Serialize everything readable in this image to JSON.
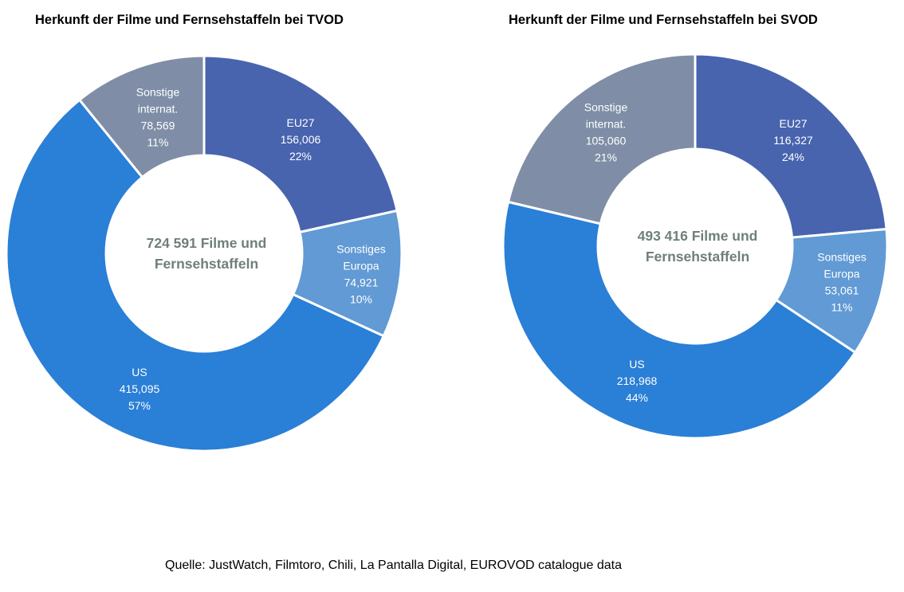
{
  "chart_data": [
    {
      "type": "pie",
      "title": "Herkunft der Filme und Fernsehstaffeln bei TVOD",
      "center_lines": [
        "724 591 Filme und",
        "Fernsehstaffeln"
      ],
      "slices": [
        {
          "label_lines": [
            "EU27"
          ],
          "display_value": "156,006",
          "display_percent": "22%",
          "value": 156006,
          "color": "#4864ae"
        },
        {
          "label_lines": [
            "Sonstiges",
            "Europa"
          ],
          "display_value": "74,921",
          "display_percent": "10%",
          "value": 74921,
          "color": "#619ad4"
        },
        {
          "label_lines": [
            "US"
          ],
          "display_value": "415,095",
          "display_percent": "57%",
          "value": 415095,
          "color": "#2a7fd6"
        },
        {
          "label_lines": [
            "Sonstige",
            "internat."
          ],
          "display_value": "78,569",
          "display_percent": "11%",
          "value": 78569,
          "color": "#7f8ea6"
        }
      ]
    },
    {
      "type": "pie",
      "title": "Herkunft der Filme und Fernsehstaffeln bei SVOD",
      "center_lines": [
        "493 416 Filme und",
        "Fernsehstaffeln"
      ],
      "slices": [
        {
          "label_lines": [
            "EU27"
          ],
          "display_value": "116,327",
          "display_percent": "24%",
          "value": 116327,
          "color": "#4864ae"
        },
        {
          "label_lines": [
            "Sonstiges",
            "Europa"
          ],
          "display_value": "53,061",
          "display_percent": "11%",
          "value": 53061,
          "color": "#619ad4"
        },
        {
          "label_lines": [
            "US"
          ],
          "display_value": "218,968",
          "display_percent": "44%",
          "value": 218968,
          "color": "#2a7fd6"
        },
        {
          "label_lines": [
            "Sonstige",
            "internat."
          ],
          "display_value": "105,060",
          "display_percent": "21%",
          "value": 105060,
          "color": "#7f8ea6"
        }
      ]
    }
  ],
  "source_note": "Quelle: JustWatch, Filmtoro, Chili, La Pantalla Digital, EUROVOD catalogue data"
}
